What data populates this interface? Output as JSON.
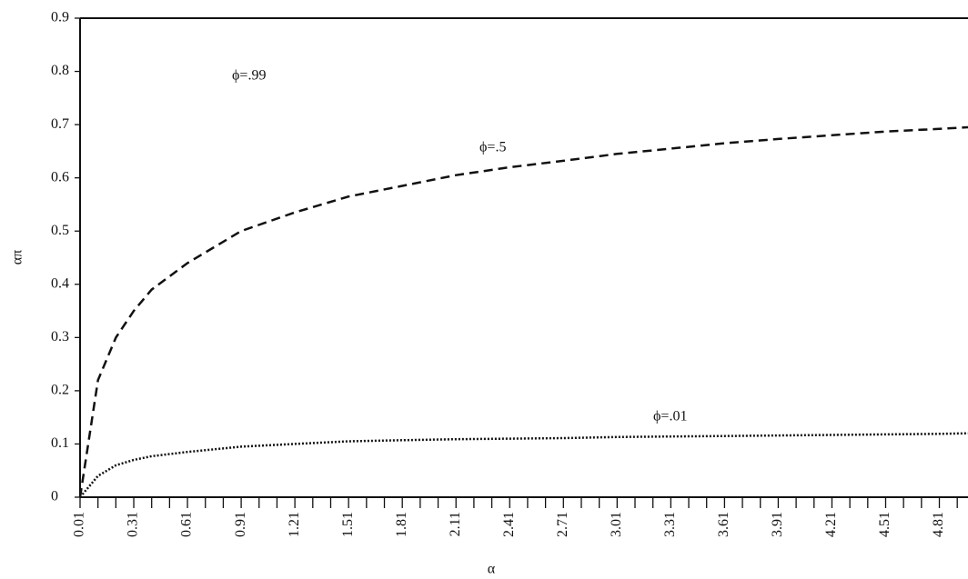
{
  "chart_data": {
    "type": "line",
    "x_label": "α",
    "y_label": "απ",
    "x": [
      0.01,
      0.11,
      0.21,
      0.31,
      0.41,
      0.61,
      0.91,
      1.21,
      1.51,
      1.81,
      2.11,
      2.41,
      2.71,
      3.01,
      3.31,
      3.61,
      3.91,
      4.21,
      4.51,
      4.81,
      4.97
    ],
    "series": [
      {
        "name": "ϕ=.5",
        "color": "#111111",
        "dash": "dashed",
        "values": [
          0,
          0.22,
          0.3,
          0.35,
          0.39,
          0.44,
          0.5,
          0.535,
          0.565,
          0.585,
          0.605,
          0.62,
          0.632,
          0.645,
          0.655,
          0.665,
          0.673,
          0.68,
          0.687,
          0.692,
          0.695
        ]
      },
      {
        "name": "ϕ=.01",
        "color": "#111111",
        "dash": "dotted",
        "values": [
          0,
          0.04,
          0.06,
          0.07,
          0.077,
          0.085,
          0.095,
          0.1,
          0.105,
          0.107,
          0.109,
          0.11,
          0.111,
          0.113,
          0.114,
          0.115,
          0.116,
          0.117,
          0.118,
          0.119,
          0.12
        ]
      }
    ],
    "annotations": [
      "ϕ=.99"
    ],
    "xlim": [
      0.01,
      4.97
    ],
    "xticks": [
      0.01,
      0.31,
      0.61,
      0.91,
      1.21,
      1.51,
      1.81,
      2.11,
      2.41,
      2.71,
      3.01,
      3.31,
      3.61,
      3.91,
      4.21,
      4.51,
      4.81
    ],
    "x_minor_ticks": [
      0.11,
      0.21,
      0.41,
      0.51,
      0.71,
      0.81,
      1.01,
      1.11,
      1.31,
      1.41,
      1.61,
      1.71,
      1.91,
      2.01,
      2.21,
      2.31,
      2.51,
      2.61,
      2.81,
      2.91,
      3.11,
      3.21,
      3.41,
      3.51,
      3.71,
      3.81,
      4.01,
      4.11,
      4.31,
      4.41,
      4.61,
      4.71,
      4.91
    ],
    "ylim": [
      0,
      0.9
    ],
    "yticks": [
      0,
      0.1,
      0.2,
      0.3,
      0.4,
      0.5,
      0.6,
      0.7,
      0.8,
      0.9
    ],
    "grid": false
  }
}
